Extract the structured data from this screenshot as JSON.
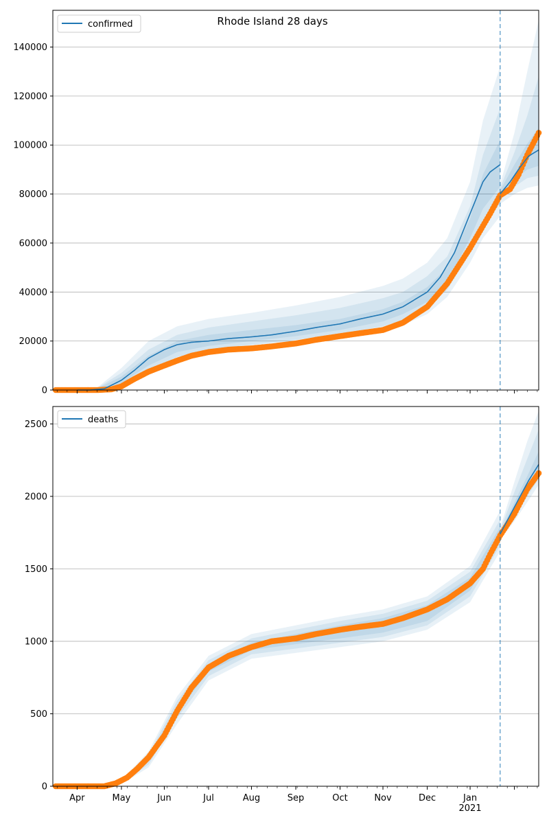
{
  "chart_data": [
    {
      "type": "line",
      "title": "Rhode Island 28 days",
      "x_start": "2020-02-13",
      "x_end": "2021-01-18",
      "ylim": [
        0,
        155000
      ],
      "yticks": [
        0,
        20000,
        40000,
        60000,
        80000,
        100000,
        120000,
        140000
      ],
      "grid": "y",
      "legend_position": "top-left",
      "legend": [
        "confirmed"
      ],
      "forecast_start": "2020-12-22",
      "series": [
        {
          "name": "confirmed",
          "role": "model",
          "color": "#1f77b4",
          "dates": [
            "2020-03-01",
            "2020-03-10",
            "2020-03-20",
            "2020-04-01",
            "2020-04-10",
            "2020-04-20",
            "2020-05-01",
            "2020-05-10",
            "2020-05-20",
            "2020-06-01",
            "2020-06-15",
            "2020-07-01",
            "2020-07-15",
            "2020-08-01",
            "2020-08-15",
            "2020-09-01",
            "2020-09-15",
            "2020-10-01",
            "2020-10-15",
            "2020-11-01",
            "2020-11-10",
            "2020-11-20",
            "2020-12-01",
            "2020-12-10",
            "2020-12-15",
            "2020-12-22"
          ],
          "values": [
            0,
            0,
            500,
            4000,
            8000,
            13000,
            16500,
            18500,
            19500,
            20000,
            21000,
            21700,
            22500,
            24000,
            25500,
            27000,
            29000,
            31000,
            34000,
            40000,
            46000,
            56000,
            72000,
            85000,
            89000,
            92000
          ]
        },
        {
          "name": "confirmed forecast",
          "role": "model",
          "color": "#1f77b4",
          "dates": [
            "2020-12-22",
            "2020-12-29",
            "2021-01-05",
            "2021-01-11",
            "2021-01-18"
          ],
          "values": [
            80000,
            85000,
            91000,
            95500,
            98000
          ]
        },
        {
          "name": "confirmed observed",
          "role": "observed",
          "color": "#ff7f0e",
          "dates": [
            "2020-02-15",
            "2020-03-01",
            "2020-03-15",
            "2020-03-25",
            "2020-04-01",
            "2020-04-10",
            "2020-04-20",
            "2020-05-01",
            "2020-05-10",
            "2020-05-20",
            "2020-06-01",
            "2020-06-15",
            "2020-07-01",
            "2020-07-15",
            "2020-08-01",
            "2020-08-15",
            "2020-09-01",
            "2020-09-15",
            "2020-10-01",
            "2020-10-15",
            "2020-11-01",
            "2020-11-15",
            "2020-12-01",
            "2020-12-10",
            "2020-12-15",
            "2020-12-22",
            "2020-12-29",
            "2021-01-04",
            "2021-01-10",
            "2021-01-18"
          ],
          "values": [
            0,
            0,
            0,
            300,
            1500,
            4500,
            7500,
            10000,
            12000,
            14000,
            15500,
            16500,
            17000,
            17800,
            19000,
            20500,
            22000,
            23200,
            24500,
            27500,
            34000,
            43500,
            58000,
            67000,
            72000,
            79500,
            82000,
            88000,
            96000,
            105000
          ]
        }
      ],
      "bands": [
        {
          "dates": [
            "2020-03-15",
            "2020-04-01",
            "2020-04-20",
            "2020-05-10",
            "2020-06-01",
            "2020-07-01",
            "2020-08-01",
            "2020-09-01",
            "2020-10-01",
            "2020-10-15",
            "2020-11-01",
            "2020-11-15",
            "2020-12-01",
            "2020-12-10",
            "2020-12-22"
          ],
          "lower": [
            0,
            1500,
            6500,
            12000,
            15000,
            17000,
            19000,
            21500,
            24000,
            26500,
            31000,
            38000,
            52000,
            62000,
            71000
          ],
          "upper": [
            1000,
            9000,
            20000,
            26000,
            29000,
            31500,
            34500,
            38000,
            42500,
            45500,
            52000,
            62000,
            85000,
            110000,
            132000
          ]
        },
        {
          "dates": [
            "2020-03-15",
            "2020-04-01",
            "2020-04-20",
            "2020-05-10",
            "2020-06-01",
            "2020-07-01",
            "2020-08-01",
            "2020-09-01",
            "2020-10-01",
            "2020-10-15",
            "2020-11-01",
            "2020-11-15",
            "2020-12-01",
            "2020-12-10",
            "2020-12-22"
          ],
          "lower": [
            0,
            2000,
            8000,
            13500,
            16500,
            18500,
            20500,
            23000,
            26000,
            28500,
            33500,
            41000,
            56000,
            67000,
            76000
          ],
          "upper": [
            800,
            7000,
            16500,
            22500,
            25500,
            28000,
            30500,
            33500,
            37500,
            40000,
            46500,
            54500,
            75000,
            96000,
            115000
          ]
        },
        {
          "dates": [
            "2020-03-15",
            "2020-04-01",
            "2020-04-20",
            "2020-05-10",
            "2020-06-01",
            "2020-07-01",
            "2020-08-01",
            "2020-09-01",
            "2020-10-01",
            "2020-10-15",
            "2020-11-01",
            "2020-11-15",
            "2020-12-01",
            "2020-12-10",
            "2020-12-22"
          ],
          "lower": [
            0,
            2800,
            10000,
            15500,
            18000,
            20000,
            22000,
            24500,
            28000,
            31000,
            36000,
            44000,
            62000,
            74000,
            83000
          ],
          "upper": [
            600,
            5500,
            14000,
            20000,
            22500,
            24500,
            26500,
            29000,
            33000,
            36000,
            42000,
            50000,
            70000,
            88000,
            102000
          ]
        },
        {
          "dates": [
            "2020-12-22",
            "2021-01-01",
            "2021-01-10",
            "2021-01-18"
          ],
          "lower": [
            76000,
            80000,
            82500,
            83500
          ],
          "upper": [
            84000,
            105000,
            130000,
            151000
          ]
        },
        {
          "dates": [
            "2020-12-22",
            "2021-01-01",
            "2021-01-10",
            "2021-01-18"
          ],
          "lower": [
            77500,
            83000,
            86500,
            87500
          ],
          "upper": [
            82500,
            97000,
            112000,
            128000
          ]
        },
        {
          "dates": [
            "2020-12-22",
            "2021-01-01",
            "2021-01-10",
            "2021-01-18"
          ],
          "lower": [
            78500,
            86000,
            90000,
            91500
          ],
          "upper": [
            81500,
            92000,
            100500,
            107000
          ]
        }
      ]
    },
    {
      "type": "line",
      "title": "",
      "x_start": "2020-02-13",
      "x_end": "2021-01-18",
      "ylim": [
        0,
        2620
      ],
      "yticks": [
        0,
        500,
        1000,
        1500,
        2000,
        2500
      ],
      "grid": "y",
      "legend_position": "top-left",
      "legend": [
        "deaths"
      ],
      "forecast_start": "2020-12-22",
      "x_tick_labels": [
        "Apr",
        "May",
        "Jun",
        "Jul",
        "Aug",
        "Sep",
        "Oct",
        "Nov",
        "Dec",
        "Jan\n2021"
      ],
      "series": [
        {
          "name": "deaths",
          "role": "model",
          "color": "#1f77b4",
          "dates": [
            "2020-12-22",
            "2020-12-29",
            "2021-01-05",
            "2021-01-11",
            "2021-01-18"
          ],
          "values": [
            1740,
            1870,
            2000,
            2110,
            2220
          ]
        },
        {
          "name": "deaths observed",
          "role": "observed",
          "color": "#ff7f0e",
          "dates": [
            "2020-02-15",
            "2020-03-01",
            "2020-03-20",
            "2020-03-28",
            "2020-04-05",
            "2020-04-12",
            "2020-04-20",
            "2020-05-01",
            "2020-05-10",
            "2020-05-20",
            "2020-06-01",
            "2020-06-15",
            "2020-07-01",
            "2020-07-15",
            "2020-08-01",
            "2020-08-15",
            "2020-09-01",
            "2020-09-15",
            "2020-10-01",
            "2020-10-15",
            "2020-11-01",
            "2020-11-15",
            "2020-12-01",
            "2020-12-10",
            "2020-12-15",
            "2020-12-22",
            "2021-01-01",
            "2021-01-10",
            "2021-01-18"
          ],
          "values": [
            0,
            0,
            0,
            20,
            60,
            120,
            200,
            350,
            520,
            680,
            820,
            900,
            960,
            1000,
            1020,
            1050,
            1080,
            1100,
            1120,
            1160,
            1220,
            1290,
            1400,
            1500,
            1600,
            1730,
            1880,
            2050,
            2160
          ]
        }
      ],
      "bands": [
        {
          "dates": [
            "2020-03-20",
            "2020-04-01",
            "2020-04-20",
            "2020-05-10",
            "2020-06-01",
            "2020-07-01",
            "2020-08-01",
            "2020-09-01",
            "2020-10-01",
            "2020-11-01",
            "2020-12-01",
            "2020-12-22"
          ],
          "lower": [
            0,
            15,
            130,
            430,
            730,
            880,
            920,
            960,
            1000,
            1080,
            1270,
            1620
          ],
          "upper": [
            5,
            40,
            240,
            620,
            900,
            1050,
            1110,
            1170,
            1220,
            1310,
            1520,
            1900
          ]
        },
        {
          "dates": [
            "2020-03-20",
            "2020-04-01",
            "2020-04-20",
            "2020-05-10",
            "2020-06-01",
            "2020-07-01",
            "2020-08-01",
            "2020-09-01",
            "2020-10-01",
            "2020-11-01",
            "2020-12-01",
            "2020-12-22"
          ],
          "lower": [
            0,
            20,
            150,
            470,
            760,
            910,
            950,
            990,
            1030,
            1110,
            1310,
            1660
          ],
          "upper": [
            4,
            35,
            220,
            590,
            870,
            1020,
            1080,
            1140,
            1190,
            1280,
            1480,
            1840
          ]
        },
        {
          "dates": [
            "2020-03-20",
            "2020-04-01",
            "2020-04-20",
            "2020-05-10",
            "2020-06-01",
            "2020-07-01",
            "2020-08-01",
            "2020-09-01",
            "2020-10-01",
            "2020-11-01",
            "2020-12-01",
            "2020-12-22"
          ],
          "lower": [
            0,
            25,
            170,
            510,
            790,
            940,
            980,
            1020,
            1060,
            1140,
            1350,
            1700
          ],
          "upper": [
            3,
            30,
            200,
            560,
            840,
            990,
            1050,
            1110,
            1160,
            1250,
            1440,
            1790
          ]
        },
        {
          "dates": [
            "2020-12-22",
            "2021-01-01",
            "2021-01-10",
            "2021-01-18"
          ],
          "lower": [
            1700,
            1830,
            1960,
            2080
          ],
          "upper": [
            1780,
            2100,
            2380,
            2590
          ]
        },
        {
          "dates": [
            "2020-12-22",
            "2021-01-01",
            "2021-01-10",
            "2021-01-18"
          ],
          "lower": [
            1715,
            1860,
            2000,
            2120
          ],
          "upper": [
            1765,
            2030,
            2260,
            2460
          ]
        },
        {
          "dates": [
            "2020-12-22",
            "2021-01-01",
            "2021-01-10",
            "2021-01-18"
          ],
          "lower": [
            1730,
            1890,
            2040,
            2160
          ],
          "upper": [
            1750,
            1960,
            2140,
            2310
          ]
        }
      ]
    }
  ]
}
